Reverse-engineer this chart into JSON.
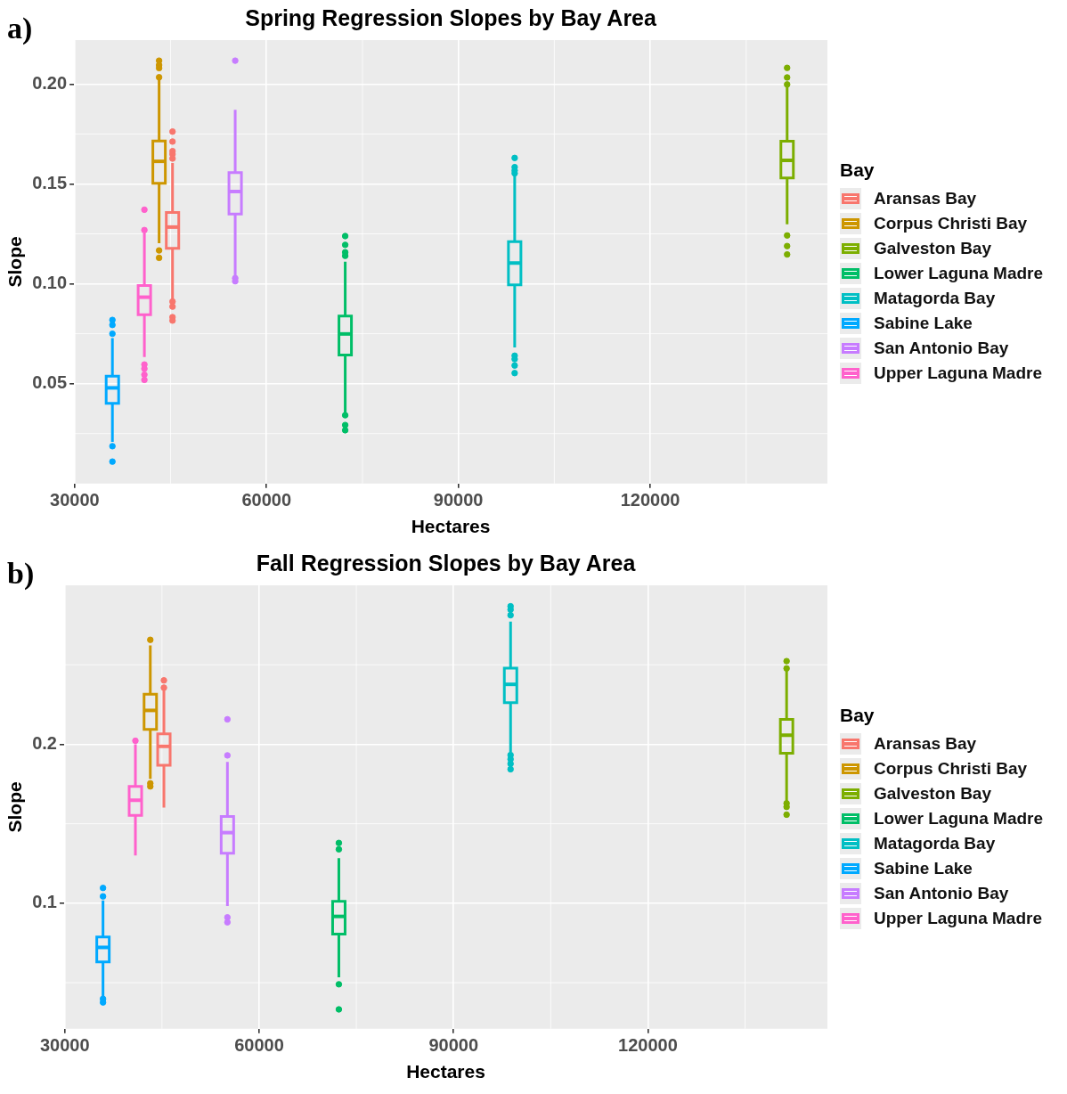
{
  "chart_data": [
    {
      "type": "box",
      "title": "Spring Regression Slopes by Bay Area",
      "xlabel": "Hectares",
      "ylabel": "Slope",
      "legend_title": "Bay",
      "legend": "right",
      "grid": true,
      "annotations": [
        "a)"
      ],
      "xlim": [
        29900,
        147700
      ],
      "xticks": [
        30000,
        60000,
        90000,
        120000
      ],
      "ylim": [
        0.0,
        0.222
      ],
      "yticks": [
        {
          "value": 0.05,
          "label": "0.05"
        },
        {
          "value": 0.1,
          "label": "0.10"
        },
        {
          "value": 0.15,
          "label": "0.15"
        },
        {
          "value": 0.2,
          "label": "0.20"
        }
      ],
      "series": [
        {
          "name": "Aransas Bay",
          "color": "#f8766d",
          "x": [
            45300
          ],
          "boxes": [
            {
              "low": 0.0918,
              "q1": 0.1178,
              "median": 0.1284,
              "q3": 0.1357,
              "high": 0.1605,
              "outliers": [
                0.1762,
                0.1712,
                0.1664,
                0.1649,
                0.1627,
                0.0911,
                0.0886,
                0.0833,
                0.0816
              ]
            }
          ]
        },
        {
          "name": "Corpus Christi Bay",
          "color": "#cd9600",
          "x": [
            43200
          ],
          "boxes": [
            {
              "low": 0.1203,
              "q1": 0.1503,
              "median": 0.1613,
              "q3": 0.1715,
              "high": 0.2029,
              "outliers": [
                0.2117,
                0.2095,
                0.208,
                0.2034,
                0.1167,
                0.113
              ]
            }
          ]
        },
        {
          "name": "Galveston Bay",
          "color": "#7cae00",
          "x": [
            141400
          ],
          "boxes": [
            {
              "low": 0.1298,
              "q1": 0.153,
              "median": 0.1618,
              "q3": 0.1714,
              "high": 0.1986,
              "outliers": [
                0.2081,
                0.2033,
                0.1998,
                0.1242,
                0.1189,
                0.1147
              ]
            }
          ]
        },
        {
          "name": "Lower Laguna Madre",
          "color": "#00be67",
          "x": [
            72300
          ],
          "boxes": [
            {
              "low": 0.0356,
              "q1": 0.0644,
              "median": 0.0749,
              "q3": 0.0839,
              "high": 0.1111,
              "outliers": [
                0.1239,
                0.1195,
                0.1158,
                0.114,
                0.0342,
                0.0293,
                0.0267
              ]
            }
          ]
        },
        {
          "name": "Matagorda Bay",
          "color": "#00bfc4",
          "x": [
            98800
          ],
          "boxes": [
            {
              "low": 0.0681,
              "q1": 0.0995,
              "median": 0.1104,
              "q3": 0.1211,
              "high": 0.1544,
              "outliers": [
                0.163,
                0.1584,
                0.1567,
                0.1553,
                0.064,
                0.0623,
                0.0591,
                0.0553
              ]
            }
          ]
        },
        {
          "name": "Sabine Lake",
          "color": "#00a9ff",
          "x": [
            35900
          ],
          "boxes": [
            {
              "low": 0.0209,
              "q1": 0.0402,
              "median": 0.0479,
              "q3": 0.0538,
              "high": 0.0728,
              "outliers": [
                0.0819,
                0.0794,
                0.075,
                0.0187,
                0.011
              ]
            }
          ]
        },
        {
          "name": "San Antonio Bay",
          "color": "#c77cff",
          "x": [
            55100
          ],
          "boxes": [
            {
              "low": 0.1042,
              "q1": 0.1349,
              "median": 0.1462,
              "q3": 0.1557,
              "high": 0.1871,
              "outliers": [
                0.2117,
                0.1028,
                0.1013
              ]
            }
          ]
        },
        {
          "name": "Upper Laguna Madre",
          "color": "#ff61cc",
          "x": [
            40900
          ],
          "boxes": [
            {
              "low": 0.0633,
              "q1": 0.0845,
              "median": 0.0933,
              "q3": 0.0991,
              "high": 0.1254,
              "outliers": [
                0.1371,
                0.1269,
                0.0596,
                0.0575,
                0.0545,
                0.0519
              ]
            }
          ]
        }
      ]
    },
    {
      "type": "box",
      "title": "Fall Regression Slopes by Bay Area",
      "xlabel": "Hectares",
      "ylabel": "Slope",
      "legend_title": "Bay",
      "legend": "right",
      "grid": true,
      "annotations": [
        "b)"
      ],
      "xlim": [
        29900,
        147700
      ],
      "xticks": [
        30000,
        60000,
        90000,
        120000
      ],
      "ylim": [
        0.021,
        0.3
      ],
      "yticks": [
        0.1,
        0.2
      ],
      "series": [
        {
          "name": "Aransas Bay",
          "color": "#f8766d",
          "x": [
            45300
          ],
          "boxes": [
            {
              "low": 0.1602,
              "q1": 0.1868,
              "median": 0.1987,
              "q3": 0.2065,
              "high": 0.2343,
              "outliers": [
                0.2402,
                0.2356
              ]
            }
          ]
        },
        {
          "name": "Corpus Christi Bay",
          "color": "#cd9600",
          "x": [
            43200
          ],
          "boxes": [
            {
              "low": 0.1783,
              "q1": 0.2093,
              "median": 0.2213,
              "q3": 0.2315,
              "high": 0.2621,
              "outliers": [
                0.2657,
                0.1754,
                0.1735
              ]
            }
          ]
        },
        {
          "name": "Galveston Bay",
          "color": "#7cae00",
          "x": [
            141400
          ],
          "boxes": [
            {
              "low": 0.1632,
              "q1": 0.1943,
              "median": 0.2057,
              "q3": 0.2157,
              "high": 0.2472,
              "outliers": [
                0.2523,
                0.2477,
                0.1628,
                0.1606,
                0.1557
              ]
            }
          ]
        },
        {
          "name": "Lower Laguna Madre",
          "color": "#00be67",
          "x": [
            72300
          ],
          "boxes": [
            {
              "low": 0.0534,
              "q1": 0.0806,
              "median": 0.0917,
              "q3": 0.1012,
              "high": 0.1283,
              "outliers": [
                0.1379,
                0.1339,
                0.049,
                0.0332
              ]
            }
          ]
        },
        {
          "name": "Matagorda Bay",
          "color": "#00bfc4",
          "x": [
            98800
          ],
          "boxes": [
            {
              "low": 0.195,
              "q1": 0.2261,
              "median": 0.2377,
              "q3": 0.2479,
              "high": 0.2772,
              "outliers": [
                0.2868,
                0.2847,
                0.2812,
                0.1932,
                0.1906,
                0.1877,
                0.1843
              ]
            }
          ]
        },
        {
          "name": "Sabine Lake",
          "color": "#00a9ff",
          "x": [
            35900
          ],
          "boxes": [
            {
              "low": 0.0407,
              "q1": 0.063,
              "median": 0.0722,
              "q3": 0.0787,
              "high": 0.1018,
              "outliers": [
                0.1096,
                0.1043,
                0.0398,
                0.0376
              ]
            }
          ]
        },
        {
          "name": "San Antonio Bay",
          "color": "#c77cff",
          "x": [
            55100
          ],
          "boxes": [
            {
              "low": 0.0982,
              "q1": 0.1315,
              "median": 0.1444,
              "q3": 0.1546,
              "high": 0.1889,
              "outliers": [
                0.2157,
                0.193,
                0.0911,
                0.088
              ]
            }
          ]
        },
        {
          "name": "Upper Laguna Madre",
          "color": "#ff61cc",
          "x": [
            40900
          ],
          "boxes": [
            {
              "low": 0.13,
              "q1": 0.1552,
              "median": 0.1648,
              "q3": 0.1735,
              "high": 0.2,
              "outliers": [
                0.2022
              ]
            }
          ]
        }
      ]
    }
  ]
}
